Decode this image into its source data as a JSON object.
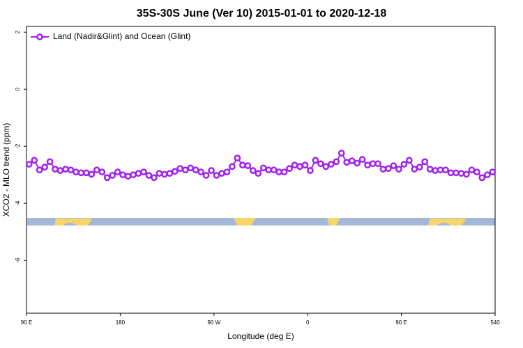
{
  "chart_data": {
    "type": "line",
    "title": "35S-30S June (Ver 10)   2015-01-01 to 2020-12-18",
    "xlabel": "Longitude (deg E)",
    "ylabel": "XCO2 - MLO trend (ppm)",
    "x": [
      92.5,
      97.5,
      102.5,
      107.5,
      112.5,
      117.5,
      122.5,
      127.5,
      132.5,
      137.5,
      142.5,
      147.5,
      152.5,
      157.5,
      162.5,
      167.5,
      172.5,
      177.5,
      182.5,
      187.5,
      192.5,
      197.5,
      202.5,
      207.5,
      212.5,
      217.5,
      222.5,
      227.5,
      232.5,
      237.5,
      242.5,
      247.5,
      252.5,
      257.5,
      262.5,
      267.5,
      272.5,
      277.5,
      282.5,
      287.5,
      292.5,
      297.5,
      302.5,
      307.5,
      312.5,
      317.5,
      322.5,
      327.5,
      332.5,
      337.5,
      342.5,
      347.5,
      352.5,
      357.5,
      362.5,
      367.5,
      372.5,
      377.5,
      382.5,
      387.5,
      392.5,
      397.5,
      402.5,
      407.5,
      412.5,
      417.5,
      422.5,
      427.5,
      432.5,
      437.5,
      442.5,
      447.5,
      452.5,
      457.5,
      462.5,
      467.5,
      472.5,
      477.5,
      482.5,
      487.5,
      492.5,
      497.5,
      502.5,
      507.5,
      512.5,
      517.5,
      522.5,
      527.5,
      532.5,
      537.5
    ],
    "series": [
      {
        "name": "Land (Nadir&Glint) and Ocean (Glint)",
        "color": "#a020f0",
        "values": [
          -2.63,
          -2.49,
          -2.83,
          -2.73,
          -2.54,
          -2.8,
          -2.85,
          -2.8,
          -2.83,
          -2.9,
          -2.93,
          -2.93,
          -2.98,
          -2.83,
          -2.9,
          -3.1,
          -3.02,
          -2.9,
          -3.0,
          -3.05,
          -3.0,
          -2.95,
          -2.9,
          -3.02,
          -3.1,
          -2.95,
          -2.98,
          -2.95,
          -2.88,
          -2.78,
          -2.83,
          -2.76,
          -2.83,
          -2.9,
          -3.02,
          -2.85,
          -3.02,
          -2.95,
          -2.9,
          -2.71,
          -2.41,
          -2.66,
          -2.68,
          -2.85,
          -2.95,
          -2.76,
          -2.83,
          -2.83,
          -2.9,
          -2.9,
          -2.78,
          -2.66,
          -2.71,
          -2.66,
          -2.85,
          -2.49,
          -2.61,
          -2.71,
          -2.63,
          -2.54,
          -2.24,
          -2.56,
          -2.51,
          -2.59,
          -2.46,
          -2.66,
          -2.61,
          -2.61,
          -2.8,
          -2.78,
          -2.68,
          -2.8,
          -2.63,
          -2.49,
          -2.8,
          -2.73,
          -2.54,
          -2.8,
          -2.85,
          -2.83,
          -2.83,
          -2.93,
          -2.93,
          -2.95,
          -2.98,
          -2.83,
          -2.9,
          -3.1,
          -3.0,
          -2.9
        ]
      }
    ],
    "xlim": [
      90,
      540
    ],
    "xticks": [
      {
        "value": 90,
        "label": "90 E"
      },
      180,
      {
        "value": 270,
        "label": "90 W"
      },
      {
        "value": 360,
        "label": "0"
      },
      {
        "value": 450,
        "label": "90 E"
      },
      540
    ],
    "ylim": [
      -7.85,
      2.2
    ],
    "yticks": [
      2,
      0,
      -2,
      -4,
      -6
    ],
    "legend": "top-left"
  }
}
